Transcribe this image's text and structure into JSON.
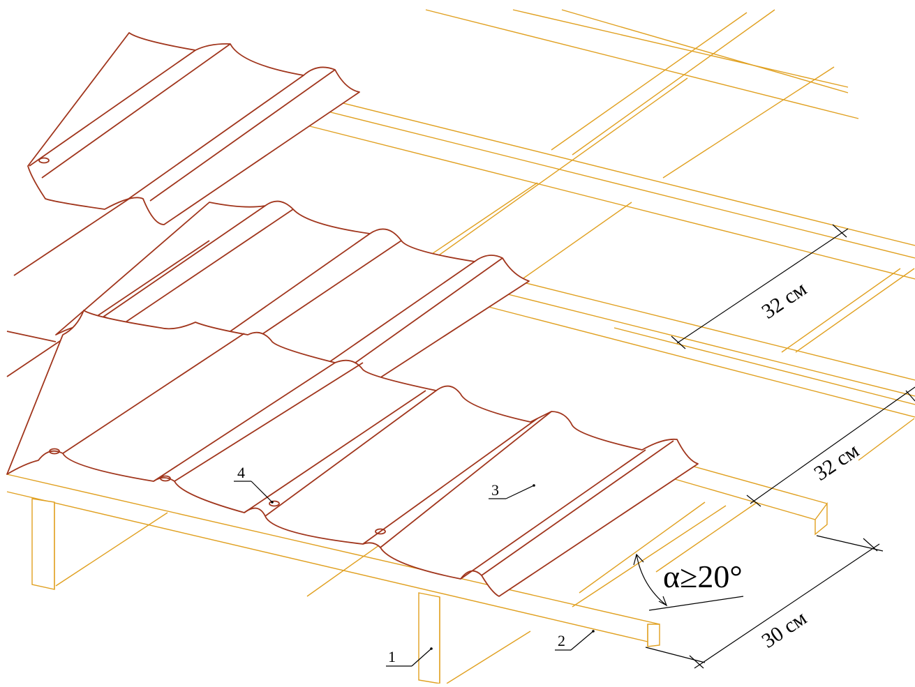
{
  "labels": {
    "l1": "1",
    "l2": "2",
    "l3": "3",
    "l4": "4"
  },
  "dimensions": {
    "d_upper": "32 см",
    "d_middle": "32 см",
    "d_lower": "30 см"
  },
  "angle": {
    "text": "α≥20°"
  },
  "colors": {
    "wood": "#e0a020",
    "sheet": "#a0351c",
    "dimension": "#000000"
  }
}
